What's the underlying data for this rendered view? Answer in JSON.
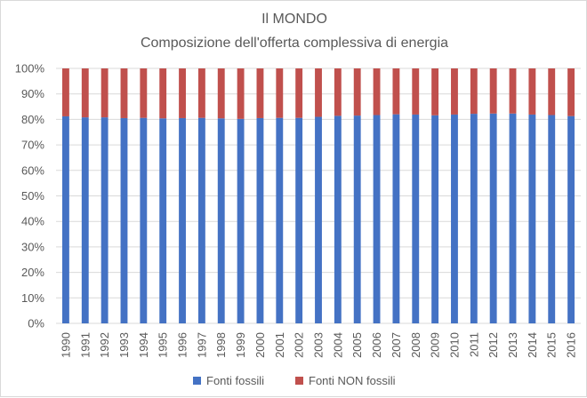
{
  "chart_data": {
    "type": "bar",
    "stacked": true,
    "title": "Il MONDO",
    "subtitle": "Composizione dell'offerta complessiva di energia",
    "xlabel": "",
    "ylabel": "",
    "ylim": [
      0,
      100
    ],
    "yticks": [
      "0%",
      "10%",
      "20%",
      "30%",
      "40%",
      "50%",
      "60%",
      "70%",
      "80%",
      "90%",
      "100%"
    ],
    "grid": true,
    "legend_position": "bottom",
    "categories": [
      "1990",
      "1991",
      "1992",
      "1993",
      "1994",
      "1995",
      "1996",
      "1997",
      "1998",
      "1999",
      "2000",
      "2001",
      "2002",
      "2003",
      "2004",
      "2005",
      "2006",
      "2007",
      "2008",
      "2009",
      "2010",
      "2011",
      "2012",
      "2013",
      "2014",
      "2015",
      "2016"
    ],
    "series": [
      {
        "name": "Fonti fossili",
        "color": "#4472c4",
        "values": [
          81.2,
          80.8,
          80.8,
          80.5,
          80.6,
          80.4,
          80.5,
          80.6,
          80.4,
          80.2,
          80.5,
          80.6,
          80.6,
          81.0,
          81.4,
          81.5,
          81.7,
          82.0,
          81.9,
          81.6,
          81.9,
          82.2,
          82.3,
          82.3,
          81.9,
          81.7,
          81.3
        ]
      },
      {
        "name": "Fonti NON fossili",
        "color": "#c0504d",
        "values": [
          18.8,
          19.2,
          19.2,
          19.5,
          19.4,
          19.6,
          19.5,
          19.4,
          19.6,
          19.8,
          19.5,
          19.4,
          19.4,
          19.0,
          18.6,
          18.5,
          18.3,
          18.0,
          18.1,
          18.4,
          18.1,
          17.8,
          17.7,
          17.7,
          18.1,
          18.3,
          18.7
        ]
      }
    ]
  }
}
